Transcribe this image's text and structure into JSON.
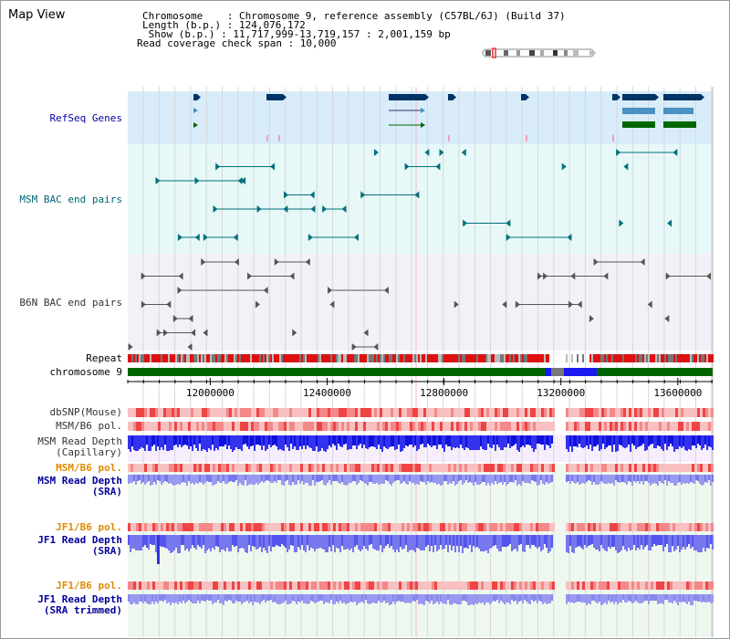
{
  "title": "Map View",
  "header": {
    "chromosome_line": "Chromosome    : Chromosome 9, reference assembly (C57BL/6J) (Build 37)",
    "length_line": "Length (b.p.) : 124,076,172",
    "show_line": " Show (b.p.) : 11,717,999-13,719,157 : 2,001,159 bp",
    "coverage_line": "Read coverage check span : 10,000"
  },
  "tracks": {
    "refseq": "RefSeq Genes",
    "msm_bac": "MSM BAC end pairs",
    "b6n_bac": "B6N BAC end pairs",
    "repeat": "Repeat",
    "chrom": "chromosome 9",
    "dbsnp": "dbSNP(Mouse)",
    "msm_b6_pol": "MSM/B6 pol.",
    "msm_depth_cap_1": "MSM Read Depth",
    "msm_depth_cap_2": "(Capillary)",
    "msm_b6_pol2": "MSM/B6 pol.",
    "msm_depth_sra_1": "MSM Read Depth",
    "msm_depth_sra_2": "(SRA)",
    "jf1_b6_pol": "JF1/B6 pol.",
    "jf1_depth_sra_1": "JF1 Read Depth",
    "jf1_depth_sra_2": "(SRA)",
    "jf1_b6_pol2": "JF1/B6 pol.",
    "jf1_depth_trim_1": "JF1 Read Depth",
    "jf1_depth_trim_2": "(SRA trimmed)"
  },
  "axis": {
    "ticks": [
      "12000000",
      "12400000",
      "12800000",
      "13200000",
      "13600000"
    ],
    "tick_values": [
      12000000,
      12400000,
      12800000,
      13200000,
      13600000
    ],
    "range": [
      11717999,
      13719157
    ]
  },
  "colors": {
    "refseq_bg": "#d8ecfa",
    "msm_bg": "#e6f8f8",
    "b6n_bg": "#f4f0f8",
    "gene_dark": "#003366",
    "gene_mid": "#4a90c0",
    "gene_green": "#006600",
    "msm_feat": "#00707a",
    "b6n_feat": "#555555",
    "repeat_red": "#dd1111",
    "chrom_green": "#006600",
    "depth_blue": "#1111dd",
    "depth_light": "#8888ee",
    "pol_red": "#ee3333"
  }
}
